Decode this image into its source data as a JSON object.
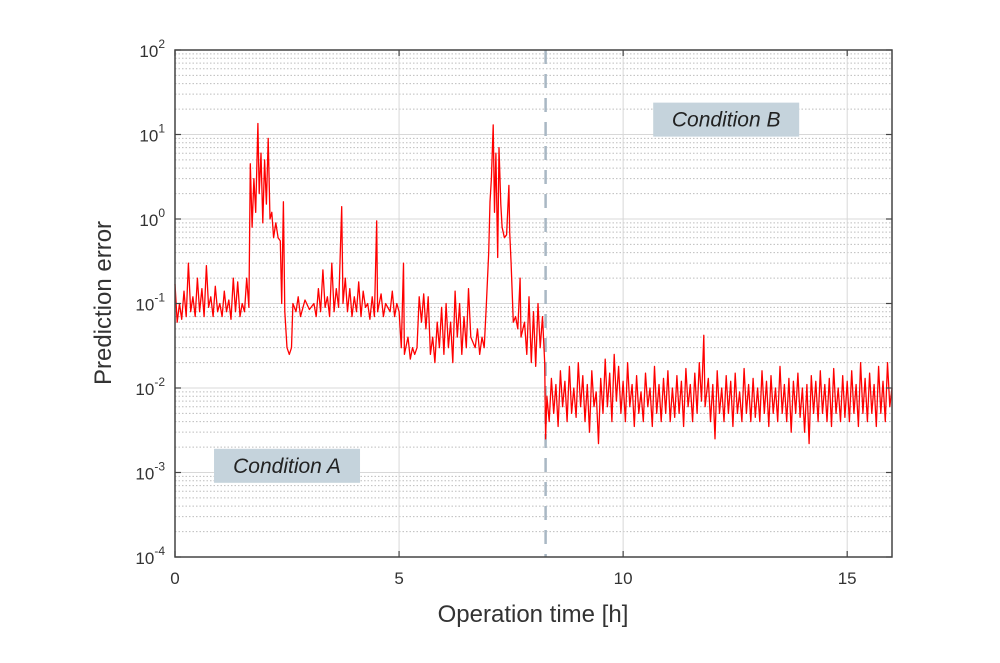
{
  "chart_data": {
    "type": "line",
    "xlabel": "Operation time [h]",
    "ylabel": "Prediction error",
    "xlim": [
      0,
      16
    ],
    "ylim": [
      0.0001,
      100
    ],
    "yscale": "log",
    "grid": true,
    "minor_grid": "dotted",
    "x_ticks": [
      0,
      5,
      10,
      15
    ],
    "y_tick_exponents": [
      -4,
      -3,
      -2,
      -1,
      0,
      1,
      2
    ],
    "y_tick_base": "10",
    "line_color": "#ff0000",
    "divider": {
      "x": 8.27,
      "style": "dashed",
      "color": "#a9b8c4"
    },
    "annotations": [
      {
        "text": "Condition A",
        "x": 2.5,
        "y": 0.0012,
        "box_color": "#c5d3dc"
      },
      {
        "text": "Condition B",
        "x": 12.3,
        "y": 15,
        "box_color": "#c5d3dc"
      }
    ],
    "points": [
      [
        0,
        0.17
      ],
      [
        0.05,
        0.06
      ],
      [
        0.1,
        0.1
      ],
      [
        0.15,
        0.065
      ],
      [
        0.2,
        0.14
      ],
      [
        0.25,
        0.07
      ],
      [
        0.3,
        0.3
      ],
      [
        0.35,
        0.08
      ],
      [
        0.4,
        0.12
      ],
      [
        0.45,
        0.07
      ],
      [
        0.5,
        0.2
      ],
      [
        0.55,
        0.08
      ],
      [
        0.6,
        0.15
      ],
      [
        0.65,
        0.07
      ],
      [
        0.7,
        0.28
      ],
      [
        0.75,
        0.09
      ],
      [
        0.8,
        0.12
      ],
      [
        0.85,
        0.07
      ],
      [
        0.9,
        0.16
      ],
      [
        0.95,
        0.08
      ],
      [
        1.0,
        0.1
      ],
      [
        1.05,
        0.07
      ],
      [
        1.1,
        0.14
      ],
      [
        1.15,
        0.08
      ],
      [
        1.2,
        0.11
      ],
      [
        1.25,
        0.065
      ],
      [
        1.3,
        0.2
      ],
      [
        1.35,
        0.08
      ],
      [
        1.4,
        0.18
      ],
      [
        1.45,
        0.07
      ],
      [
        1.5,
        0.1
      ],
      [
        1.55,
        0.08
      ],
      [
        1.6,
        0.2
      ],
      [
        1.65,
        0.09
      ],
      [
        1.68,
        4.5
      ],
      [
        1.72,
        0.8
      ],
      [
        1.76,
        3
      ],
      [
        1.8,
        1.2
      ],
      [
        1.85,
        13.5
      ],
      [
        1.88,
        2
      ],
      [
        1.92,
        6
      ],
      [
        1.96,
        0.9
      ],
      [
        2.0,
        5
      ],
      [
        2.04,
        1.5
      ],
      [
        2.08,
        9
      ],
      [
        2.12,
        1
      ],
      [
        2.16,
        1.2
      ],
      [
        2.2,
        0.6
      ],
      [
        2.25,
        0.9
      ],
      [
        2.3,
        0.6
      ],
      [
        2.35,
        0.55
      ],
      [
        2.38,
        0.1
      ],
      [
        2.42,
        1.6
      ],
      [
        2.45,
        0.08
      ],
      [
        2.5,
        0.03
      ],
      [
        2.55,
        0.025
      ],
      [
        2.6,
        0.03
      ],
      [
        2.63,
        0.1
      ],
      [
        2.7,
        0.08
      ],
      [
        2.75,
        0.12
      ],
      [
        2.8,
        0.07
      ],
      [
        2.9,
        0.11
      ],
      [
        3.0,
        0.085
      ],
      [
        3.1,
        0.1
      ],
      [
        3.15,
        0.07
      ],
      [
        3.2,
        0.15
      ],
      [
        3.25,
        0.08
      ],
      [
        3.3,
        0.25
      ],
      [
        3.35,
        0.09
      ],
      [
        3.4,
        0.12
      ],
      [
        3.45,
        0.07
      ],
      [
        3.5,
        0.3
      ],
      [
        3.55,
        0.08
      ],
      [
        3.6,
        0.15
      ],
      [
        3.65,
        0.09
      ],
      [
        3.72,
        1.4
      ],
      [
        3.75,
        0.1
      ],
      [
        3.8,
        0.2
      ],
      [
        3.85,
        0.08
      ],
      [
        3.9,
        0.15
      ],
      [
        3.95,
        0.07
      ],
      [
        4.0,
        0.12
      ],
      [
        4.05,
        0.08
      ],
      [
        4.1,
        0.18
      ],
      [
        4.15,
        0.07
      ],
      [
        4.2,
        0.14
      ],
      [
        4.25,
        0.09
      ],
      [
        4.3,
        0.1
      ],
      [
        4.35,
        0.065
      ],
      [
        4.4,
        0.12
      ],
      [
        4.45,
        0.07
      ],
      [
        4.5,
        0.95
      ],
      [
        4.52,
        0.08
      ],
      [
        4.6,
        0.13
      ],
      [
        4.65,
        0.07
      ],
      [
        4.7,
        0.1
      ],
      [
        4.8,
        0.08
      ],
      [
        4.85,
        0.14
      ],
      [
        4.9,
        0.07
      ],
      [
        4.95,
        0.1
      ],
      [
        5.0,
        0.08
      ],
      [
        5.05,
        0.03
      ],
      [
        5.1,
        0.3
      ],
      [
        5.12,
        0.025
      ],
      [
        5.2,
        0.04
      ],
      [
        5.25,
        0.022
      ],
      [
        5.3,
        0.03
      ],
      [
        5.35,
        0.025
      ],
      [
        5.4,
        0.03
      ],
      [
        5.45,
        0.12
      ],
      [
        5.5,
        0.06
      ],
      [
        5.55,
        0.13
      ],
      [
        5.6,
        0.05
      ],
      [
        5.65,
        0.12
      ],
      [
        5.7,
        0.025
      ],
      [
        5.75,
        0.04
      ],
      [
        5.8,
        0.02
      ],
      [
        5.85,
        0.06
      ],
      [
        5.9,
        0.03
      ],
      [
        5.95,
        0.09
      ],
      [
        6.0,
        0.025
      ],
      [
        6.05,
        0.1
      ],
      [
        6.1,
        0.03
      ],
      [
        6.15,
        0.06
      ],
      [
        6.2,
        0.02
      ],
      [
        6.25,
        0.14
      ],
      [
        6.3,
        0.04
      ],
      [
        6.35,
        0.1
      ],
      [
        6.4,
        0.025
      ],
      [
        6.45,
        0.07
      ],
      [
        6.5,
        0.03
      ],
      [
        6.55,
        0.15
      ],
      [
        6.6,
        0.04
      ],
      [
        6.7,
        0.03
      ],
      [
        6.75,
        0.05
      ],
      [
        6.8,
        0.025
      ],
      [
        6.85,
        0.04
      ],
      [
        6.9,
        0.03
      ],
      [
        6.95,
        0.1
      ],
      [
        7.0,
        0.4
      ],
      [
        7.03,
        1.6
      ],
      [
        7.06,
        3
      ],
      [
        7.1,
        13
      ],
      [
        7.13,
        1.2
      ],
      [
        7.16,
        6
      ],
      [
        7.2,
        0.35
      ],
      [
        7.23,
        7
      ],
      [
        7.27,
        1.5
      ],
      [
        7.3,
        0.8
      ],
      [
        7.35,
        0.6
      ],
      [
        7.4,
        0.65
      ],
      [
        7.45,
        2.5
      ],
      [
        7.47,
        0.7
      ],
      [
        7.5,
        0.3
      ],
      [
        7.55,
        0.06
      ],
      [
        7.6,
        0.07
      ],
      [
        7.65,
        0.05
      ],
      [
        7.7,
        0.2
      ],
      [
        7.72,
        0.04
      ],
      [
        7.8,
        0.06
      ],
      [
        7.85,
        0.025
      ],
      [
        7.9,
        0.12
      ],
      [
        7.95,
        0.02
      ],
      [
        8.0,
        0.08
      ],
      [
        8.05,
        0.018
      ],
      [
        8.1,
        0.1
      ],
      [
        8.15,
        0.03
      ],
      [
        8.2,
        0.07
      ],
      [
        8.25,
        0.02
      ],
      [
        8.27,
        0.0025
      ],
      [
        8.3,
        0.008
      ],
      [
        8.35,
        0.004
      ],
      [
        8.4,
        0.013
      ],
      [
        8.45,
        0.005
      ],
      [
        8.5,
        0.011
      ],
      [
        8.55,
        0.0035
      ],
      [
        8.6,
        0.016
      ],
      [
        8.65,
        0.006
      ],
      [
        8.7,
        0.012
      ],
      [
        8.75,
        0.004
      ],
      [
        8.8,
        0.018
      ],
      [
        8.85,
        0.005
      ],
      [
        8.9,
        0.01
      ],
      [
        8.95,
        0.0045
      ],
      [
        9.0,
        0.02
      ],
      [
        9.05,
        0.006
      ],
      [
        9.1,
        0.014
      ],
      [
        9.15,
        0.004
      ],
      [
        9.2,
        0.011
      ],
      [
        9.25,
        0.003
      ],
      [
        9.3,
        0.016
      ],
      [
        9.35,
        0.006
      ],
      [
        9.4,
        0.009
      ],
      [
        9.45,
        0.0022
      ],
      [
        9.5,
        0.013
      ],
      [
        9.55,
        0.005
      ],
      [
        9.6,
        0.022
      ],
      [
        9.65,
        0.006
      ],
      [
        9.7,
        0.015
      ],
      [
        9.75,
        0.004
      ],
      [
        9.8,
        0.025
      ],
      [
        9.85,
        0.007
      ],
      [
        9.9,
        0.018
      ],
      [
        9.95,
        0.005
      ],
      [
        10.0,
        0.012
      ],
      [
        10.05,
        0.004
      ],
      [
        10.1,
        0.02
      ],
      [
        10.15,
        0.006
      ],
      [
        10.2,
        0.011
      ],
      [
        10.25,
        0.0035
      ],
      [
        10.3,
        0.014
      ],
      [
        10.35,
        0.005
      ],
      [
        10.4,
        0.009
      ],
      [
        10.45,
        0.004
      ],
      [
        10.5,
        0.015
      ],
      [
        10.55,
        0.006
      ],
      [
        10.6,
        0.01
      ],
      [
        10.65,
        0.0035
      ],
      [
        10.7,
        0.018
      ],
      [
        10.75,
        0.005
      ],
      [
        10.8,
        0.011
      ],
      [
        10.85,
        0.004
      ],
      [
        10.9,
        0.013
      ],
      [
        10.95,
        0.005
      ],
      [
        11.0,
        0.016
      ],
      [
        11.05,
        0.004
      ],
      [
        11.1,
        0.01
      ],
      [
        11.15,
        0.0045
      ],
      [
        11.2,
        0.014
      ],
      [
        11.25,
        0.005
      ],
      [
        11.3,
        0.012
      ],
      [
        11.35,
        0.0035
      ],
      [
        11.4,
        0.017
      ],
      [
        11.45,
        0.006
      ],
      [
        11.5,
        0.011
      ],
      [
        11.55,
        0.004
      ],
      [
        11.6,
        0.015
      ],
      [
        11.65,
        0.005
      ],
      [
        11.7,
        0.02
      ],
      [
        11.75,
        0.007
      ],
      [
        11.8,
        0.042
      ],
      [
        11.83,
        0.006
      ],
      [
        11.9,
        0.013
      ],
      [
        11.95,
        0.004
      ],
      [
        12.0,
        0.011
      ],
      [
        12.05,
        0.0025
      ],
      [
        12.1,
        0.016
      ],
      [
        12.15,
        0.005
      ],
      [
        12.2,
        0.01
      ],
      [
        12.25,
        0.004
      ],
      [
        12.3,
        0.014
      ],
      [
        12.35,
        0.005
      ],
      [
        12.4,
        0.012
      ],
      [
        12.45,
        0.0035
      ],
      [
        12.5,
        0.015
      ],
      [
        12.55,
        0.005
      ],
      [
        12.6,
        0.009
      ],
      [
        12.65,
        0.004
      ],
      [
        12.7,
        0.017
      ],
      [
        12.75,
        0.005
      ],
      [
        12.8,
        0.011
      ],
      [
        12.85,
        0.004
      ],
      [
        12.9,
        0.013
      ],
      [
        12.95,
        0.0045
      ],
      [
        13.0,
        0.01
      ],
      [
        13.05,
        0.004
      ],
      [
        13.1,
        0.016
      ],
      [
        13.15,
        0.005
      ],
      [
        13.2,
        0.012
      ],
      [
        13.25,
        0.0035
      ],
      [
        13.3,
        0.014
      ],
      [
        13.35,
        0.005
      ],
      [
        13.4,
        0.01
      ],
      [
        13.45,
        0.004
      ],
      [
        13.5,
        0.018
      ],
      [
        13.55,
        0.005
      ],
      [
        13.6,
        0.011
      ],
      [
        13.65,
        0.004
      ],
      [
        13.7,
        0.013
      ],
      [
        13.75,
        0.003
      ],
      [
        13.8,
        0.012
      ],
      [
        13.85,
        0.005
      ],
      [
        13.9,
        0.015
      ],
      [
        13.95,
        0.0045
      ],
      [
        14.0,
        0.01
      ],
      [
        14.05,
        0.003
      ],
      [
        14.1,
        0.011
      ],
      [
        14.15,
        0.0022
      ],
      [
        14.2,
        0.014
      ],
      [
        14.25,
        0.005
      ],
      [
        14.3,
        0.012
      ],
      [
        14.35,
        0.004
      ],
      [
        14.4,
        0.016
      ],
      [
        14.45,
        0.005
      ],
      [
        14.5,
        0.011
      ],
      [
        14.55,
        0.004
      ],
      [
        14.6,
        0.013
      ],
      [
        14.65,
        0.0035
      ],
      [
        14.7,
        0.017
      ],
      [
        14.75,
        0.005
      ],
      [
        14.8,
        0.01
      ],
      [
        14.85,
        0.004
      ],
      [
        14.9,
        0.014
      ],
      [
        14.95,
        0.0045
      ],
      [
        15.0,
        0.012
      ],
      [
        15.05,
        0.004
      ],
      [
        15.1,
        0.016
      ],
      [
        15.15,
        0.005
      ],
      [
        15.2,
        0.011
      ],
      [
        15.25,
        0.0035
      ],
      [
        15.3,
        0.02
      ],
      [
        15.35,
        0.005
      ],
      [
        15.4,
        0.013
      ],
      [
        15.45,
        0.004
      ],
      [
        15.5,
        0.015
      ],
      [
        15.55,
        0.005
      ],
      [
        15.6,
        0.011
      ],
      [
        15.65,
        0.0035
      ],
      [
        15.7,
        0.018
      ],
      [
        15.75,
        0.005
      ],
      [
        15.8,
        0.012
      ],
      [
        15.85,
        0.004
      ],
      [
        15.9,
        0.02
      ],
      [
        15.95,
        0.006
      ],
      [
        16.0,
        0.01
      ]
    ]
  }
}
